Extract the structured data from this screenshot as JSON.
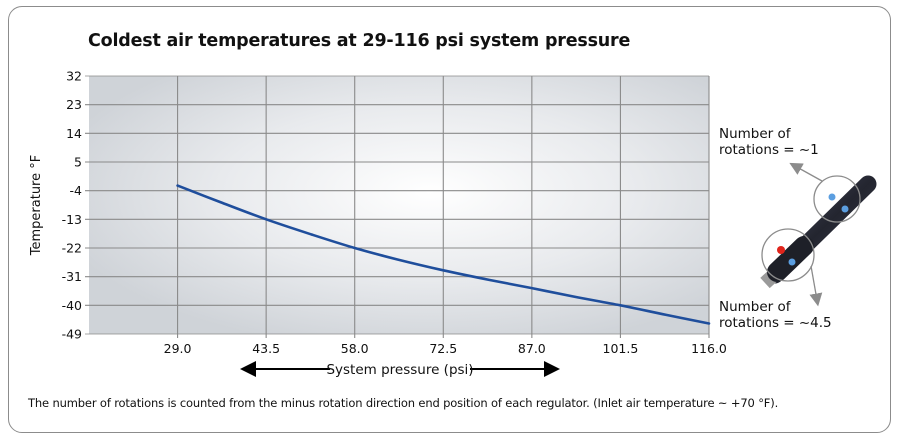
{
  "chart_data": {
    "type": "line",
    "title": "Coldest air temperatures at 29-116 psi system pressure",
    "xlabel": "System pressure (psi)",
    "ylabel": "Temperature °F",
    "x_ticks": [
      "29.0",
      "43.5",
      "58.0",
      "72.5",
      "87.0",
      "101.5",
      "116.0"
    ],
    "y_ticks": [
      "32",
      "23",
      "14",
      "5",
      "-4",
      "-13",
      "-22",
      "-31",
      "-40",
      "-49"
    ],
    "xlim": [
      14.5,
      116.0
    ],
    "ylim": [
      -49,
      32
    ],
    "grid": true,
    "series": [
      {
        "name": "Coldest air temperature",
        "color": "#1f4e9c",
        "x": [
          29.0,
          36.0,
          43.5,
          51.0,
          58.0,
          65.0,
          72.5,
          80.0,
          87.0,
          94.0,
          101.5,
          109.0,
          116.0
        ],
        "y": [
          -2.4,
          -7.6,
          -13.0,
          -17.8,
          -22.0,
          -25.6,
          -29.0,
          -32.0,
          -34.6,
          -37.3,
          -40.0,
          -43.0,
          -45.7
        ]
      }
    ],
    "annotations": {
      "top": [
        "Number of",
        "rotations = ~1"
      ],
      "bottom": [
        "Number of",
        "rotations = ~4.5"
      ]
    },
    "footnote": "The number of rotations is counted from the minus rotation direction end position of each regulator. (Inlet air temperature ~ +70 °F)."
  },
  "colors": {
    "line": "#1f4e9c",
    "grid": "#8a8a8a",
    "plot_edge": "#cdd1d6",
    "plot_center": "#ffffff",
    "arrow": "#8c8c8c",
    "device": "#2b2d3a"
  }
}
